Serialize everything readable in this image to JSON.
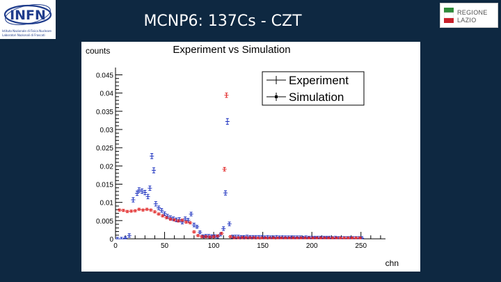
{
  "header": {
    "title": "MCNP6: 137Cs - CZT",
    "left_logo": {
      "name": "INFN",
      "text": "INFN",
      "subtitle_line1": "Istituto Nazionale di Fisica Nucleare",
      "subtitle_line2": "Laboratori Nazionali di Frascati"
    },
    "right_logo": {
      "name": "Regione Lazio",
      "line1": "REGIONE",
      "line2": "LAZIO"
    }
  },
  "colors": {
    "background": "#0e2841",
    "panel": "#ffffff",
    "experiment": "#1a2fbf",
    "simulation": "#e02020",
    "axis": "#000000"
  },
  "chart_data": {
    "type": "scatter",
    "title": "Experiment vs Simulation",
    "xlabel": "chn",
    "ylabel": "counts",
    "xlim": [
      0,
      275
    ],
    "ylim": [
      0,
      0.047
    ],
    "x_ticks": [
      0,
      50,
      100,
      150,
      200,
      250
    ],
    "x_tick_labels": [
      "0",
      "50",
      "100",
      "150",
      "200",
      "250"
    ],
    "y_ticks": [
      0,
      0.005,
      0.01,
      0.015,
      0.02,
      0.025,
      0.03,
      0.035,
      0.04,
      0.045
    ],
    "y_tick_labels": [
      "0",
      "0.005",
      "0.01",
      "0.015",
      "0.02",
      "0.025",
      "0.03",
      "0.035",
      "0.04",
      "0.045"
    ],
    "grid": false,
    "legend_position": "top-right",
    "legend": [
      "Experiment",
      "Simulation"
    ],
    "series": [
      {
        "name": "Experiment",
        "color": "#1a2fbf",
        "points": [
          [
            2,
            0.0,
            0.0004
          ],
          [
            6,
            0.0,
            0.0004
          ],
          [
            10,
            0.0002,
            0.0004
          ],
          [
            14,
            0.0009,
            0.0005
          ],
          [
            18,
            0.0107,
            0.0006
          ],
          [
            22,
            0.0125,
            0.0006
          ],
          [
            24,
            0.0134,
            0.0006
          ],
          [
            27,
            0.0131,
            0.0006
          ],
          [
            30,
            0.0127,
            0.0006
          ],
          [
            33,
            0.0116,
            0.0006
          ],
          [
            35,
            0.0139,
            0.0006
          ],
          [
            37,
            0.0227,
            0.0007
          ],
          [
            39,
            0.0188,
            0.0007
          ],
          [
            41,
            0.0096,
            0.0006
          ],
          [
            44,
            0.0085,
            0.0005
          ],
          [
            47,
            0.0078,
            0.0005
          ],
          [
            50,
            0.0069,
            0.0005
          ],
          [
            53,
            0.0062,
            0.0005
          ],
          [
            56,
            0.0058,
            0.0005
          ],
          [
            59,
            0.0055,
            0.0005
          ],
          [
            62,
            0.0052,
            0.0005
          ],
          [
            65,
            0.0053,
            0.0005
          ],
          [
            68,
            0.0046,
            0.0005
          ],
          [
            71,
            0.0055,
            0.0005
          ],
          [
            74,
            0.0051,
            0.0005
          ],
          [
            77,
            0.0068,
            0.0005
          ],
          [
            80,
            0.0038,
            0.0005
          ],
          [
            83,
            0.0033,
            0.0004
          ],
          [
            86,
            0.0018,
            0.0004
          ],
          [
            89,
            0.0007,
            0.0004
          ],
          [
            92,
            0.0008,
            0.0004
          ],
          [
            95,
            0.0008,
            0.0004
          ],
          [
            98,
            0.0007,
            0.0004
          ],
          [
            101,
            0.0007,
            0.0004
          ],
          [
            104,
            0.0006,
            0.0004
          ],
          [
            107,
            0.0012,
            0.0004
          ],
          [
            110,
            0.0028,
            0.0005
          ],
          [
            112,
            0.0126,
            0.0006
          ],
          [
            114,
            0.0322,
            0.0008
          ],
          [
            116,
            0.0041,
            0.0005
          ],
          [
            119,
            0.0006,
            0.0004
          ],
          [
            122,
            0.0006,
            0.0004
          ],
          [
            125,
            0.0006,
            0.0004
          ],
          [
            128,
            0.0005,
            0.0004
          ],
          [
            131,
            0.0005,
            0.0004
          ],
          [
            134,
            0.0006,
            0.0004
          ],
          [
            137,
            0.0005,
            0.0004
          ],
          [
            140,
            0.0005,
            0.0004
          ],
          [
            143,
            0.0005,
            0.0004
          ],
          [
            146,
            0.0005,
            0.0004
          ],
          [
            149,
            0.0005,
            0.0004
          ],
          [
            152,
            0.0004,
            0.0004
          ],
          [
            155,
            0.0005,
            0.0004
          ],
          [
            158,
            0.0004,
            0.0004
          ],
          [
            161,
            0.0004,
            0.0004
          ],
          [
            164,
            0.0005,
            0.0004
          ],
          [
            167,
            0.0004,
            0.0004
          ],
          [
            170,
            0.0004,
            0.0004
          ],
          [
            173,
            0.0004,
            0.0004
          ],
          [
            176,
            0.0004,
            0.0004
          ],
          [
            179,
            0.0004,
            0.0004
          ],
          [
            182,
            0.0004,
            0.0004
          ],
          [
            185,
            0.0004,
            0.0004
          ],
          [
            188,
            0.0004,
            0.0004
          ],
          [
            191,
            0.0003,
            0.0004
          ],
          [
            194,
            0.0004,
            0.0004
          ],
          [
            197,
            0.0003,
            0.0004
          ],
          [
            200,
            0.0003,
            0.0004
          ],
          [
            203,
            0.0003,
            0.0004
          ],
          [
            206,
            0.0003,
            0.0004
          ],
          [
            209,
            0.0003,
            0.0004
          ],
          [
            212,
            0.0003,
            0.0004
          ],
          [
            215,
            0.0003,
            0.0004
          ],
          [
            218,
            0.0003,
            0.0004
          ],
          [
            221,
            0.0002,
            0.0004
          ],
          [
            224,
            0.0003,
            0.0004
          ],
          [
            227,
            0.0002,
            0.0004
          ],
          [
            230,
            0.0002,
            0.0004
          ],
          [
            233,
            0.0002,
            0.0004
          ],
          [
            236,
            0.0002,
            0.0004
          ],
          [
            239,
            0.0002,
            0.0004
          ],
          [
            242,
            0.0002,
            0.0004
          ],
          [
            245,
            0.0002,
            0.0004
          ],
          [
            248,
            0.0002,
            0.0004
          ],
          [
            251,
            0.0002,
            0.0004
          ]
        ]
      },
      {
        "name": "Simulation",
        "color": "#e02020",
        "points": [
          [
            4,
            0.0079,
            0.0003
          ],
          [
            8,
            0.0078,
            0.0003
          ],
          [
            12,
            0.0075,
            0.0003
          ],
          [
            16,
            0.0076,
            0.0003
          ],
          [
            20,
            0.0077,
            0.0003
          ],
          [
            24,
            0.0081,
            0.0003
          ],
          [
            28,
            0.0079,
            0.0003
          ],
          [
            32,
            0.0081,
            0.0003
          ],
          [
            36,
            0.0079,
            0.0003
          ],
          [
            40,
            0.0074,
            0.0003
          ],
          [
            44,
            0.0068,
            0.0003
          ],
          [
            48,
            0.0063,
            0.0003
          ],
          [
            52,
            0.0058,
            0.0003
          ],
          [
            56,
            0.0054,
            0.0003
          ],
          [
            60,
            0.0052,
            0.0003
          ],
          [
            64,
            0.0049,
            0.0003
          ],
          [
            68,
            0.0051,
            0.0003
          ],
          [
            72,
            0.0046,
            0.0003
          ],
          [
            76,
            0.0044,
            0.0003
          ],
          [
            80,
            0.0019,
            0.0003
          ],
          [
            84,
            0.0009,
            0.0003
          ],
          [
            88,
            0.0006,
            0.0003
          ],
          [
            92,
            0.0006,
            0.0003
          ],
          [
            96,
            0.0005,
            0.0003
          ],
          [
            100,
            0.0006,
            0.0003
          ],
          [
            104,
            0.0008,
            0.0003
          ],
          [
            108,
            0.0015,
            0.0003
          ],
          [
            111,
            0.0191,
            0.0005
          ],
          [
            113,
            0.0394,
            0.0006
          ],
          [
            117,
            0.0006,
            0.0003
          ],
          [
            121,
            0.0003,
            0.0003
          ],
          [
            125,
            0.0003,
            0.0003
          ],
          [
            129,
            0.0003,
            0.0003
          ],
          [
            133,
            0.0003,
            0.0003
          ],
          [
            137,
            0.0003,
            0.0003
          ],
          [
            141,
            0.0003,
            0.0003
          ],
          [
            145,
            0.0002,
            0.0003
          ],
          [
            149,
            0.0002,
            0.0003
          ],
          [
            153,
            0.0002,
            0.0003
          ],
          [
            157,
            0.0002,
            0.0003
          ],
          [
            161,
            0.0002,
            0.0003
          ],
          [
            165,
            0.0002,
            0.0003
          ],
          [
            169,
            0.0002,
            0.0003
          ],
          [
            173,
            0.0002,
            0.0003
          ],
          [
            177,
            0.0002,
            0.0003
          ],
          [
            181,
            0.0002,
            0.0003
          ],
          [
            185,
            0.0002,
            0.0003
          ],
          [
            189,
            0.0002,
            0.0003
          ],
          [
            193,
            0.0002,
            0.0003
          ],
          [
            197,
            0.0002,
            0.0003
          ],
          [
            201,
            0.0002,
            0.0003
          ],
          [
            205,
            0.0002,
            0.0003
          ],
          [
            209,
            0.0002,
            0.0003
          ],
          [
            213,
            0.0002,
            0.0003
          ],
          [
            217,
            0.0002,
            0.0003
          ],
          [
            221,
            0.0002,
            0.0003
          ],
          [
            225,
            0.0002,
            0.0003
          ],
          [
            229,
            0.0002,
            0.0003
          ],
          [
            233,
            0.0002,
            0.0003
          ],
          [
            237,
            0.0002,
            0.0003
          ],
          [
            241,
            0.0002,
            0.0003
          ],
          [
            245,
            0.0002,
            0.0003
          ],
          [
            249,
            0.0002,
            0.0003
          ]
        ]
      }
    ]
  }
}
